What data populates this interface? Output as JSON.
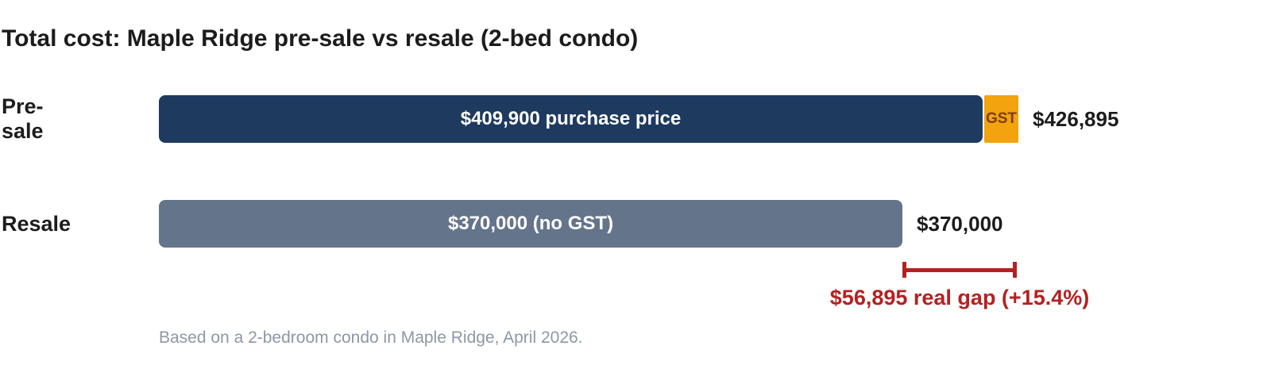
{
  "chart_data": {
    "type": "bar",
    "orientation": "horizontal",
    "title": "Total cost: Maple Ridge pre-sale vs resale (2-bed condo)",
    "categories": [
      "Pre-sale",
      "Resale"
    ],
    "series": [
      {
        "name": "Purchase price",
        "values": [
          409900,
          370000
        ]
      },
      {
        "name": "GST",
        "values": [
          16995,
          0
        ]
      }
    ],
    "totals": [
      426895,
      370000
    ],
    "value_axis_max": 426895,
    "gap_value": 56895,
    "gap_percent": "+15.4%",
    "annotation": "$56,895 real gap (+15.4%)",
    "footnote": "Based on a 2-bedroom condo in Maple Ridge, April 2026.",
    "legend": "none",
    "grid": false
  },
  "rows": [
    {
      "label": "Pre-sale",
      "bar_label": "$409,900 purchase price",
      "gst_label": "GST",
      "total_label": "$426,895"
    },
    {
      "label": "Resale",
      "bar_label": "$370,000 (no GST)",
      "total_label": "$370,000"
    }
  ],
  "colors": {
    "purchase_bar": "#1f3a5f",
    "resale_bar": "#64748b",
    "gst_bar": "#f2a30d",
    "gst_text": "#7c3d0e",
    "gap_red": "#b42121",
    "text_dark": "#1c1c1c",
    "footnote_gray": "#8d97a6"
  }
}
